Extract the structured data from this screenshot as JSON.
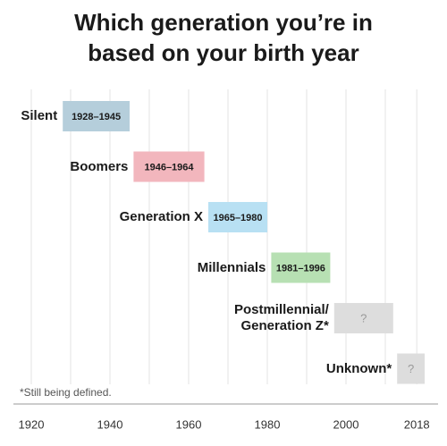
{
  "chart_data": {
    "type": "timeline",
    "title": "Which generation you’re in\nbased on your birth year",
    "note": "*Still being defined.",
    "generations": [
      {
        "name": "Silent",
        "start": 1928,
        "end": 1945,
        "label": "1928–1945",
        "color": "#b5cedb"
      },
      {
        "name": "Boomers",
        "start": 1946,
        "end": 1964,
        "label": "1946–1964",
        "color": "#f2b6bd"
      },
      {
        "name": "Generation X",
        "start": 1965,
        "end": 1980,
        "label": "1965–1980",
        "color": "#b8e0f3"
      },
      {
        "name": "Millennials",
        "start": 1981,
        "end": 1996,
        "label": "1981–1996",
        "color": "#b7e0b3"
      },
      {
        "name": "Postmillennial/\nGeneration Z*",
        "start": 1997,
        "end": 2012,
        "label": "?",
        "color": "#dddddd"
      },
      {
        "name": "Unknown*",
        "start": 2013,
        "end": 2020,
        "label": "?",
        "color": "#dddddd"
      }
    ],
    "xlim": [
      1920,
      2020
    ],
    "xticks": [
      1920,
      1940,
      1960,
      1980,
      2000,
      2018
    ],
    "minor_xticks": [
      1930,
      1950,
      1970,
      1990,
      2010
    ],
    "grid": true
  }
}
